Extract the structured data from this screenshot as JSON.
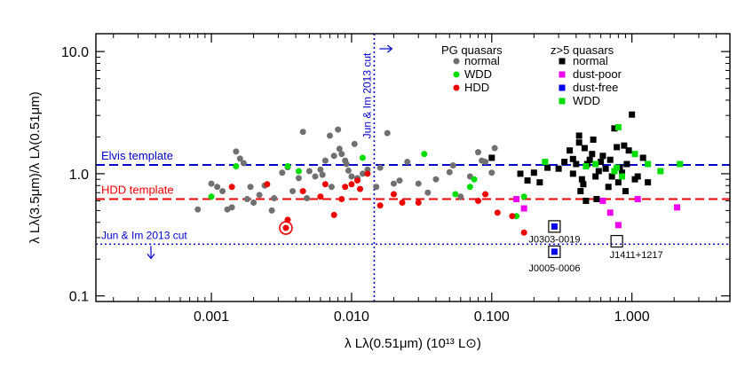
{
  "chart_data": {
    "type": "scatter",
    "xscale": "log",
    "yscale": "log",
    "xlim": [
      0.00015,
      5.0
    ],
    "ylim": [
      0.09,
      14.0
    ],
    "xlabel": "λ Lλ(0.51μm) (10¹³ L⊙)",
    "ylabel": "λ Lλ(3.5μm)/λ Lλ(0.51μm)",
    "xticks": [
      {
        "value": 0.001,
        "label": "0.001"
      },
      {
        "value": 0.01,
        "label": "0.010"
      },
      {
        "value": 0.1,
        "label": "0.100"
      },
      {
        "value": 1.0,
        "label": "1.000"
      }
    ],
    "yticks": [
      {
        "value": 0.1,
        "label": "0.1"
      },
      {
        "value": 1.0,
        "label": "1.0"
      },
      {
        "value": 10.0,
        "label": "10.0"
      }
    ],
    "reference_lines": [
      {
        "orientation": "horizontal",
        "value": 1.18,
        "label": "Elvis template",
        "color": "#0000cc",
        "style": "dashed"
      },
      {
        "orientation": "horizontal",
        "value": 0.62,
        "label": "HDD template",
        "color": "#ee0000",
        "style": "dashed"
      },
      {
        "orientation": "horizontal",
        "value": 0.265,
        "label": "Jun & Im 2013 cut",
        "color": "#0000cc",
        "style": "dotted"
      },
      {
        "orientation": "vertical",
        "value": 0.0145,
        "label": "Jun & Im 2013 cut",
        "color": "#0000cc",
        "style": "dotted"
      }
    ],
    "legend_groups": [
      {
        "title": "PG quasars",
        "entries": [
          {
            "name": "normal",
            "color": "#707070",
            "marker": "circle"
          },
          {
            "name": "WDD",
            "color": "#00dd00",
            "marker": "circle"
          },
          {
            "name": "HDD",
            "color": "#ee0000",
            "marker": "circle"
          }
        ]
      },
      {
        "title": "z>5 quasars",
        "entries": [
          {
            "name": "normal",
            "color": "#000000",
            "marker": "square"
          },
          {
            "name": "dust-poor",
            "color": "#ee00ee",
            "marker": "square"
          },
          {
            "name": "dust-free",
            "color": "#0000ee",
            "marker": "square"
          },
          {
            "name": "WDD",
            "color": "#00dd00",
            "marker": "square"
          }
        ]
      }
    ],
    "annotations": [
      {
        "label": "J0303-0019",
        "x": 0.28,
        "y": 0.37
      },
      {
        "label": "J0005-0006",
        "x": 0.28,
        "y": 0.23
      },
      {
        "label": "J1411+1217",
        "x": 0.78,
        "y": 0.28
      }
    ],
    "series": [
      {
        "name": "PG normal",
        "marker": "circle",
        "color": "#707070",
        "points": [
          [
            0.0008,
            0.51
          ],
          [
            0.001,
            0.83
          ],
          [
            0.0011,
            0.78
          ],
          [
            0.0012,
            0.72
          ],
          [
            0.0013,
            0.51
          ],
          [
            0.0014,
            0.53
          ],
          [
            0.0015,
            1.52
          ],
          [
            0.0016,
            1.33
          ],
          [
            0.0017,
            1.22
          ],
          [
            0.0018,
            0.62
          ],
          [
            0.0019,
            0.78
          ],
          [
            0.002,
            0.58
          ],
          [
            0.0022,
            0.67
          ],
          [
            0.0024,
            0.8
          ],
          [
            0.0027,
            0.5
          ],
          [
            0.0028,
            0.63
          ],
          [
            0.0032,
            1.02
          ],
          [
            0.0035,
            1.13
          ],
          [
            0.0038,
            0.72
          ],
          [
            0.0042,
            0.92
          ],
          [
            0.0045,
            2.2
          ],
          [
            0.0048,
            0.63
          ],
          [
            0.005,
            1.05
          ],
          [
            0.0055,
            0.95
          ],
          [
            0.006,
            1.08
          ],
          [
            0.0062,
            0.98
          ],
          [
            0.0065,
            1.28
          ],
          [
            0.007,
            2.05
          ],
          [
            0.0072,
            0.78
          ],
          [
            0.0075,
            1.4
          ],
          [
            0.008,
            2.3
          ],
          [
            0.0082,
            1.6
          ],
          [
            0.0085,
            1.45
          ],
          [
            0.009,
            1.28
          ],
          [
            0.0092,
            1.2
          ],
          [
            0.0095,
            1.06
          ],
          [
            0.01,
            0.95
          ],
          [
            0.0105,
            1.75
          ],
          [
            0.011,
            0.92
          ],
          [
            0.012,
            1.0
          ],
          [
            0.013,
            1.08
          ],
          [
            0.015,
            0.78
          ],
          [
            0.016,
            1.12
          ],
          [
            0.018,
            2.15
          ],
          [
            0.02,
            0.83
          ],
          [
            0.022,
            0.88
          ],
          [
            0.025,
            1.25
          ],
          [
            0.03,
            0.83
          ],
          [
            0.035,
            0.7
          ],
          [
            0.04,
            0.9
          ],
          [
            0.05,
            1.03
          ],
          [
            0.053,
            1.17
          ],
          [
            0.06,
            0.65
          ],
          [
            0.07,
            0.95
          ],
          [
            0.08,
            1.5
          ],
          [
            0.085,
            1.28
          ],
          [
            0.09,
            1.25
          ],
          [
            0.1,
            1.02
          ],
          [
            0.105,
            1.62
          ]
        ]
      },
      {
        "name": "PG WDD",
        "marker": "circle",
        "color": "#00dd00",
        "points": [
          [
            0.001,
            0.65
          ],
          [
            0.0015,
            1.15
          ],
          [
            0.0035,
            1.15
          ],
          [
            0.0042,
            1.05
          ],
          [
            0.012,
            1.35
          ],
          [
            0.033,
            1.45
          ],
          [
            0.055,
            0.68
          ],
          [
            0.07,
            0.78
          ],
          [
            0.075,
            0.9
          ],
          [
            0.15,
            0.45
          ],
          [
            0.17,
            0.65
          ]
        ]
      },
      {
        "name": "PG HDD",
        "marker": "circle",
        "color": "#ee0000",
        "points": [
          [
            0.0014,
            0.78
          ],
          [
            0.0025,
            0.82
          ],
          [
            0.0035,
            0.42
          ],
          [
            0.0045,
            0.72
          ],
          [
            0.006,
            0.65
          ],
          [
            0.0065,
            0.82
          ],
          [
            0.0075,
            0.46
          ],
          [
            0.0085,
            0.62
          ],
          [
            0.009,
            0.78
          ],
          [
            0.01,
            0.82
          ],
          [
            0.011,
            0.88
          ],
          [
            0.0115,
            0.75
          ],
          [
            0.013,
            1.0
          ],
          [
            0.016,
            0.55
          ],
          [
            0.02,
            0.68
          ],
          [
            0.023,
            0.58
          ],
          [
            0.03,
            0.58
          ],
          [
            0.08,
            0.6
          ],
          [
            0.09,
            0.68
          ],
          [
            0.11,
            0.48
          ],
          [
            0.14,
            0.45
          ],
          [
            0.17,
            0.33
          ]
        ]
      },
      {
        "name": "PG HDD circled",
        "marker": "circled",
        "color": "#ee0000",
        "points": [
          [
            0.0034,
            0.36
          ]
        ]
      },
      {
        "name": "z>5 normal",
        "marker": "square",
        "color": "#000000",
        "points": [
          [
            0.1,
            1.35
          ],
          [
            0.16,
            1.0
          ],
          [
            0.18,
            0.88
          ],
          [
            0.2,
            1.02
          ],
          [
            0.22,
            0.85
          ],
          [
            0.25,
            1.12
          ],
          [
            0.3,
            1.1
          ],
          [
            0.33,
            1.25
          ],
          [
            0.36,
            1.55
          ],
          [
            0.38,
            1.0
          ],
          [
            0.4,
            1.2
          ],
          [
            0.42,
            1.8
          ],
          [
            0.43,
            0.72
          ],
          [
            0.44,
            0.9
          ],
          [
            0.45,
            0.82
          ],
          [
            0.46,
            1.62
          ],
          [
            0.47,
            0.6
          ],
          [
            0.48,
            1.2
          ],
          [
            0.5,
            1.3
          ],
          [
            0.52,
            1.45
          ],
          [
            0.53,
            1.9
          ],
          [
            0.55,
            0.95
          ],
          [
            0.56,
            0.62
          ],
          [
            0.58,
            1.05
          ],
          [
            0.6,
            1.25
          ],
          [
            0.62,
            1.4
          ],
          [
            0.65,
            1.1
          ],
          [
            0.68,
            0.78
          ],
          [
            0.7,
            1.3
          ],
          [
            0.72,
            0.95
          ],
          [
            0.75,
            2.35
          ],
          [
            0.78,
            1.65
          ],
          [
            0.8,
            0.85
          ],
          [
            0.82,
            1.12
          ],
          [
            0.85,
            1.02
          ],
          [
            0.88,
            1.7
          ],
          [
            0.9,
            0.72
          ],
          [
            0.92,
            1.2
          ],
          [
            0.95,
            1.55
          ],
          [
            1.0,
            3.05
          ],
          [
            1.05,
            0.9
          ],
          [
            1.1,
            0.95
          ],
          [
            1.2,
            1.35
          ],
          [
            1.3,
            0.85
          ],
          [
            0.42,
            2.05
          ],
          [
            0.38,
            1.32
          ]
        ]
      },
      {
        "name": "z>5 dust-poor",
        "marker": "square",
        "color": "#ee00ee",
        "points": [
          [
            0.15,
            0.62
          ],
          [
            0.17,
            0.52
          ],
          [
            0.62,
            0.6
          ],
          [
            0.7,
            0.48
          ],
          [
            0.8,
            0.38
          ],
          [
            1.1,
            0.62
          ],
          [
            2.1,
            0.53
          ]
        ]
      },
      {
        "name": "z>5 dust-free",
        "marker": "square",
        "color": "#0000ee",
        "points": [
          [
            0.28,
            0.37
          ],
          [
            0.28,
            0.23
          ]
        ]
      },
      {
        "name": "z>5 WDD",
        "marker": "square",
        "color": "#00dd00",
        "points": [
          [
            0.24,
            1.25
          ],
          [
            0.47,
            1.15
          ],
          [
            0.55,
            1.2
          ],
          [
            0.75,
            1.05
          ],
          [
            0.78,
            1.12
          ],
          [
            0.8,
            2.4
          ],
          [
            0.85,
            0.95
          ],
          [
            1.05,
            1.45
          ],
          [
            1.3,
            1.2
          ],
          [
            1.6,
            1.05
          ],
          [
            2.2,
            1.2
          ]
        ]
      }
    ]
  }
}
